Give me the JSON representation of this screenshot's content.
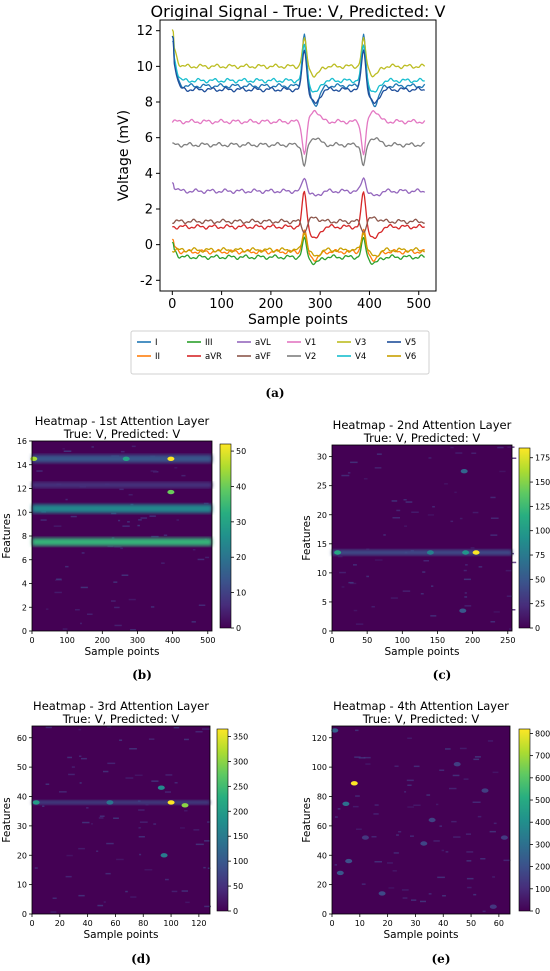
{
  "panels": {
    "a": {
      "caption": "(a)",
      "chart_data": {
        "type": "line",
        "title": "Original Signal - True: V, Predicted: V",
        "xlabel": "Sample points",
        "ylabel": "Voltage (mV)",
        "xlim": [
          -25,
          535
        ],
        "ylim": [
          -2.6,
          12.6
        ],
        "xticks": [
          0,
          100,
          200,
          300,
          400,
          500
        ],
        "yticks": [
          -2,
          0,
          2,
          4,
          6,
          8,
          10,
          12
        ],
        "grid": false,
        "legend_position": "bottom",
        "series": [
          {
            "name": "I",
            "color": "#1f77b4",
            "baseline": 8.9,
            "ventricular": 3.0,
            "initial": 2.5
          },
          {
            "name": "II",
            "color": "#ff7f0e",
            "baseline": -0.4,
            "ventricular": 1.2,
            "initial": 0.6
          },
          {
            "name": "III",
            "color": "#2ca02c",
            "baseline": -0.7,
            "ventricular": 1.0,
            "initial": 0.8
          },
          {
            "name": "aVR",
            "color": "#d62728",
            "baseline": 1.0,
            "ventricular": 2.0,
            "initial": 0.0
          },
          {
            "name": "aVL",
            "color": "#9467bd",
            "baseline": 3.0,
            "ventricular": 0.8,
            "initial": 0.5
          },
          {
            "name": "aVF",
            "color": "#8c564b",
            "baseline": 1.3,
            "ventricular": -0.6,
            "initial": 0.0
          },
          {
            "name": "V1",
            "color": "#e377c2",
            "baseline": 6.9,
            "ventricular": -1.8,
            "initial": 0.0
          },
          {
            "name": "V2",
            "color": "#7f7f7f",
            "baseline": 5.6,
            "ventricular": -1.2,
            "initial": 0.0
          },
          {
            "name": "V3",
            "color": "#bcbd22",
            "baseline": 10.0,
            "ventricular": 1.5,
            "initial": 2.0
          },
          {
            "name": "V4",
            "color": "#17becf",
            "baseline": 9.2,
            "ventricular": 2.0,
            "initial": 2.5
          },
          {
            "name": "V5",
            "color": "#1f4e9a",
            "baseline": 8.7,
            "ventricular": 2.3,
            "initial": 3.0
          },
          {
            "name": "V6",
            "color": "#c8a000",
            "baseline": -0.3,
            "ventricular": 1.0,
            "initial": 0.0
          }
        ],
        "beat_positions": [
          268,
          388
        ],
        "length": 512
      }
    },
    "b": {
      "caption": "(b)",
      "chart_data": {
        "type": "heatmap",
        "title": "Heatmap - 1st Attention Layer",
        "subtitle": "True: V, Predicted: V",
        "xlabel": "Sample points",
        "ylabel": "Features",
        "xlim": [
          0,
          512
        ],
        "ylim": [
          0,
          16
        ],
        "xticks": [
          0,
          100,
          200,
          300,
          400,
          500
        ],
        "yticks": [
          0,
          2,
          4,
          6,
          8,
          10,
          12,
          14,
          16
        ],
        "colorbar": {
          "min": 0,
          "max": 52,
          "ticks": [
            0,
            10,
            20,
            30,
            40,
            50
          ]
        },
        "bands": [
          {
            "feature": 7.5,
            "value": 34,
            "width": 0.5
          },
          {
            "feature": 10.3,
            "value": 24,
            "width": 0.55
          },
          {
            "feature": 14.5,
            "value": 14,
            "width": 0.5
          },
          {
            "feature": 12.3,
            "value": 8,
            "width": 0.3
          }
        ],
        "hotspots": [
          {
            "x": 5,
            "feature": 14.5,
            "value": 45
          },
          {
            "x": 395,
            "feature": 14.5,
            "value": 52
          },
          {
            "x": 395,
            "feature": 11.7,
            "value": 40
          },
          {
            "x": 268,
            "feature": 14.5,
            "value": 30
          }
        ]
      }
    },
    "c": {
      "caption": "(c)",
      "chart_data": {
        "type": "heatmap",
        "title": "Heatmap - 2nd Attention Layer",
        "subtitle": "True: V, Predicted: V",
        "xlabel": "Sample points",
        "ylabel": "Features",
        "xlim": [
          0,
          256
        ],
        "ylim": [
          0,
          32
        ],
        "xticks": [
          0,
          50,
          100,
          150,
          200,
          250
        ],
        "yticks": [
          0,
          5,
          10,
          15,
          20,
          25,
          30
        ],
        "colorbar": {
          "min": 0,
          "max": 185,
          "ticks": [
            0,
            25,
            50,
            75,
            100,
            125,
            150,
            175
          ]
        },
        "bands": [
          {
            "feature": 13.5,
            "value": 45,
            "width": 0.6
          }
        ],
        "hotspots": [
          {
            "x": 205,
            "feature": 13.5,
            "value": 185
          },
          {
            "x": 8,
            "feature": 13.5,
            "value": 110
          },
          {
            "x": 190,
            "feature": 13.5,
            "value": 95
          },
          {
            "x": 140,
            "feature": 13.5,
            "value": 80
          },
          {
            "x": 188,
            "feature": 27.5,
            "value": 60
          },
          {
            "x": 186,
            "feature": 3.5,
            "value": 50
          }
        ]
      }
    },
    "d": {
      "caption": "(d)",
      "chart_data": {
        "type": "heatmap",
        "title": "Heatmap - 3rd Attention Layer",
        "subtitle": "True: V, Predicted: V",
        "xlabel": "Sample points",
        "ylabel": "Features",
        "xlim": [
          0,
          128
        ],
        "ylim": [
          0,
          64
        ],
        "xticks": [
          0,
          20,
          40,
          60,
          80,
          100,
          120
        ],
        "yticks": [
          0,
          10,
          20,
          30,
          40,
          50,
          60
        ],
        "colorbar": {
          "min": 0,
          "max": 365,
          "ticks": [
            0,
            50,
            100,
            150,
            200,
            250,
            300,
            350
          ]
        },
        "bands": [
          {
            "feature": 38,
            "value": 80,
            "width": 0.6
          }
        ],
        "hotspots": [
          {
            "x": 100,
            "feature": 38,
            "value": 365
          },
          {
            "x": 110,
            "feature": 37,
            "value": 300
          },
          {
            "x": 3,
            "feature": 38,
            "value": 200
          },
          {
            "x": 93,
            "feature": 43,
            "value": 170
          },
          {
            "x": 95,
            "feature": 20,
            "value": 150
          },
          {
            "x": 56,
            "feature": 38,
            "value": 140
          }
        ]
      }
    },
    "e": {
      "caption": "(e)",
      "chart_data": {
        "type": "heatmap",
        "title": "Heatmap - 4th Attention Layer",
        "subtitle": "True: V, Predicted: V",
        "xlabel": "Sample points",
        "ylabel": "Features",
        "xlim": [
          0,
          64
        ],
        "ylim": [
          0,
          128
        ],
        "xticks": [
          0,
          10,
          20,
          30,
          40,
          50,
          60
        ],
        "yticks": [
          0,
          20,
          40,
          60,
          80,
          100,
          120
        ],
        "colorbar": {
          "min": 0,
          "max": 820,
          "ticks": [
            0,
            100,
            200,
            300,
            400,
            500,
            600,
            700,
            800
          ]
        },
        "bands": [],
        "hotspots": [
          {
            "x": 8,
            "feature": 89,
            "value": 820
          },
          {
            "x": 5,
            "feature": 75,
            "value": 300
          },
          {
            "x": 1,
            "feature": 125,
            "value": 250
          },
          {
            "x": 3,
            "feature": 28,
            "value": 220
          },
          {
            "x": 6,
            "feature": 36,
            "value": 200
          },
          {
            "x": 18,
            "feature": 14,
            "value": 180
          },
          {
            "x": 33,
            "feature": 48,
            "value": 170
          },
          {
            "x": 36,
            "feature": 64,
            "value": 160
          },
          {
            "x": 55,
            "feature": 84,
            "value": 150
          },
          {
            "x": 45,
            "feature": 102,
            "value": 150
          },
          {
            "x": 62,
            "feature": 52,
            "value": 140
          },
          {
            "x": 12,
            "feature": 52,
            "value": 130
          },
          {
            "x": 58,
            "feature": 5,
            "value": 130
          }
        ]
      }
    }
  }
}
